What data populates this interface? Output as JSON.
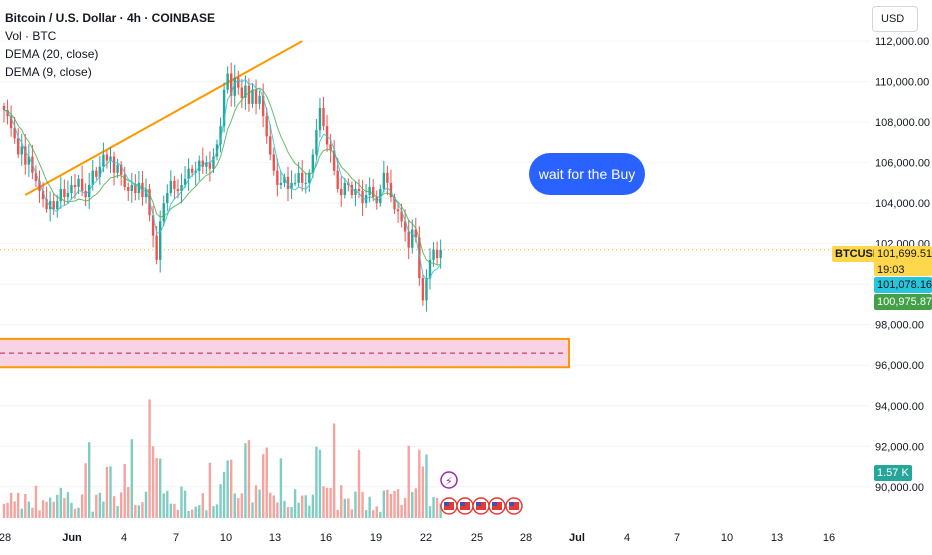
{
  "legend": {
    "title": "Bitcoin / U.S. Dollar · 4h · COINBASE",
    "vol": "Vol · BTC",
    "dema20": "DEMA (20, close)",
    "dema9": "DEMA (9, close)"
  },
  "currency_button": "USD",
  "annotation": "wait for the Buy",
  "symbol_tag": "BTCUSD",
  "price_tags": {
    "last": "101,699.51",
    "countdown": "19:03",
    "dema20": "101,078.16",
    "dema9": "100,975.87",
    "volume": "1.57 K"
  },
  "colors": {
    "up": "#26a69a",
    "down": "#ef5350",
    "vol_up": "#7fcdc2",
    "vol_down": "#f4a39e",
    "trendline": "#ff9800",
    "dema": "#4caf50",
    "zone_fill": "#f8d3e4",
    "zone_border": "#ff9800",
    "last_price": "#ffd74a",
    "dema20_tag": "#26c6da",
    "dema9_tag": "#43a047",
    "vol_tag": "#26a69a",
    "bubble": "#2962ff"
  },
  "chart_data": {
    "type": "candlestick",
    "title": "Bitcoin / U.S. Dollar · 4h · COINBASE",
    "y_ticks": [
      "90,000.00",
      "92,000.00",
      "94,000.00",
      "96,000.00",
      "98,000.00",
      "100,000.00",
      "102,000.00",
      "104,000.00",
      "106,000.00",
      "108,000.00",
      "110,000.00",
      "112,000.00"
    ],
    "y_tick_values": [
      90000,
      92000,
      94000,
      96000,
      98000,
      100000,
      102000,
      104000,
      106000,
      108000,
      110000,
      112000
    ],
    "ylim": [
      89200,
      112300
    ],
    "x_ticks": [
      "28",
      "Jun",
      "4",
      "7",
      "10",
      "13",
      "16",
      "19",
      "22",
      "25",
      "28",
      "Jul",
      "4",
      "7",
      "10",
      "13",
      "16"
    ],
    "last_price": 101699.51,
    "demand_zone": [
      95900,
      97300
    ],
    "demand_zone_mid": 96600,
    "trendline": {
      "start": {
        "date": "May 29",
        "price": 104400
      },
      "end": {
        "date": "Jun 11",
        "price": 112000
      }
    },
    "closes": [
      108600,
      108300,
      107700,
      107200,
      106400,
      106800,
      105900,
      106300,
      105500,
      105100,
      104600,
      104200,
      103700,
      104100,
      103700,
      104100,
      104700,
      104300,
      104500,
      104900,
      104800,
      105200,
      104600,
      104300,
      104900,
      105600,
      105300,
      105800,
      106400,
      106100,
      106300,
      105500,
      105900,
      105400,
      104800,
      104600,
      104900,
      104500,
      105000,
      104300,
      104700,
      103400,
      102400,
      101200,
      103100,
      104000,
      104500,
      105100,
      104700,
      104600,
      104900,
      105200,
      105700,
      105500,
      105600,
      106100,
      105800,
      106000,
      105700,
      106300,
      106900,
      107800,
      109600,
      110400,
      109300,
      110200,
      109700,
      109200,
      109800,
      108900,
      109600,
      108900,
      109300,
      108300,
      107300,
      106400,
      105600,
      104900,
      105000,
      105300,
      104700,
      105000,
      105000,
      105500,
      105000,
      105000,
      105500,
      106400,
      107600,
      108700,
      107800,
      106900,
      106600,
      105600,
      104700,
      104400,
      105000,
      104900,
      104400,
      104700,
      104600,
      104000,
      104400,
      104800,
      104300,
      104000,
      104700,
      105500,
      105000,
      104300,
      103700,
      103600,
      103100,
      102600,
      101800,
      102700,
      102300,
      100300,
      99200,
      100300,
      101200,
      101700,
      101300,
      101700
    ]
  }
}
